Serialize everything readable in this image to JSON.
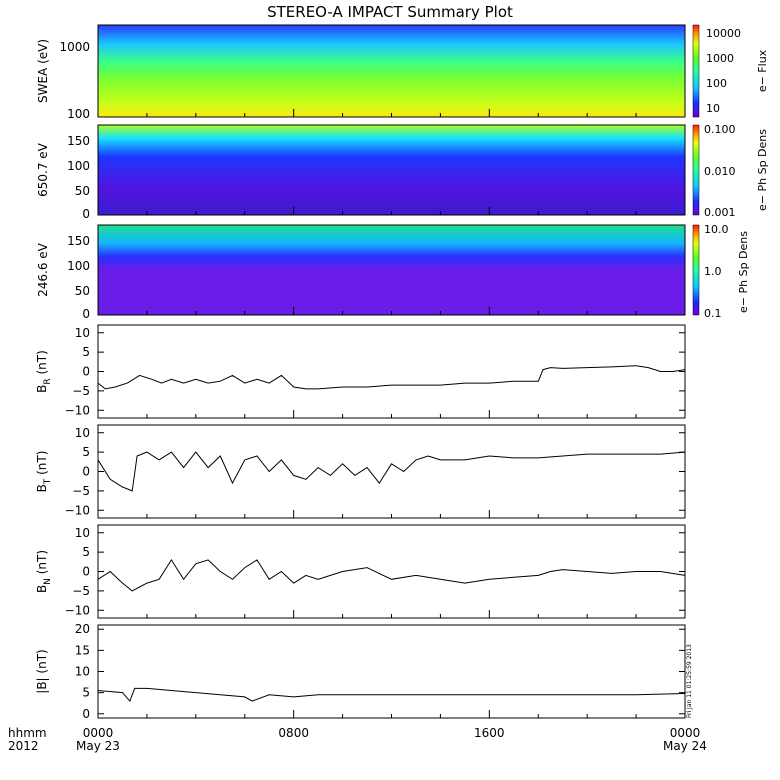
{
  "title": "STEREO-A IMPACT Summary Plot",
  "timestamp": "Fri Jan 11 01:25:59 2013",
  "x_axis": {
    "ticks": [
      "0000",
      "0800",
      "1600",
      "0000"
    ],
    "date_labels": [
      "May 23",
      "",
      "",
      "May 24"
    ],
    "unit_label": "hhmm",
    "year": "2012"
  },
  "colors": {
    "line": "#000000",
    "background": "#ffffff"
  },
  "chart_data": [
    {
      "type": "heatmap",
      "ylabel": "SWEA (eV)",
      "ylog": true,
      "yticks": [
        "1000",
        "100"
      ],
      "colorbar_label": "e− Flux",
      "colorbar_ticks": [
        "10000",
        "1000",
        "100",
        "10"
      ],
      "colormap": "rainbow"
    },
    {
      "type": "heatmap",
      "ylabel": "650.7 eV",
      "yticks": [
        "150",
        "100",
        "50",
        "0"
      ],
      "ylim": [
        0,
        180
      ],
      "colorbar_label": "e− Ph Sp Dens",
      "colorbar_ticks": [
        "0.100",
        "0.010",
        "0.001"
      ],
      "colormap": "rainbow"
    },
    {
      "type": "heatmap",
      "ylabel": "246.6 eV",
      "yticks": [
        "150",
        "100",
        "50",
        "0"
      ],
      "ylim": [
        0,
        180
      ],
      "colorbar_label": "e− Ph Sp Dens",
      "colorbar_ticks": [
        "10.0",
        "1.0",
        "0.1"
      ],
      "colormap": "rainbow"
    },
    {
      "type": "line",
      "ylabel_main": "B",
      "ylabel_sub": "R",
      "ylabel_unit": " (nT)",
      "ylim": [
        -12,
        12
      ],
      "yticks": [
        "10",
        "5",
        "0",
        "−5",
        "−10"
      ],
      "x": [
        0,
        0.3,
        0.7,
        1.2,
        1.7,
        2.2,
        2.6,
        3,
        3.5,
        4,
        4.5,
        5,
        5.5,
        6,
        6.5,
        7,
        7.5,
        8,
        8.5,
        9,
        10,
        11,
        12,
        13,
        14,
        15,
        16,
        17,
        18,
        18.2,
        18.5,
        19,
        20,
        21,
        22,
        22.5,
        23,
        23.5,
        24
      ],
      "values": [
        -3,
        -4.5,
        -4,
        -3,
        -1,
        -2,
        -3,
        -2,
        -3,
        -2,
        -3,
        -2.5,
        -1,
        -3,
        -2,
        -3,
        -1,
        -4,
        -4.5,
        -4.5,
        -4,
        -4,
        -3.5,
        -3.5,
        -3.5,
        -3,
        -3,
        -2.5,
        -2.5,
        0.5,
        1,
        0.8,
        1,
        1.2,
        1.5,
        1,
        0,
        0,
        0.5
      ]
    },
    {
      "type": "line",
      "ylabel_main": "B",
      "ylabel_sub": "T",
      "ylabel_unit": " (nT)",
      "ylim": [
        -12,
        12
      ],
      "yticks": [
        "10",
        "5",
        "0",
        "−5",
        "−10"
      ],
      "x": [
        0,
        0.5,
        1,
        1.4,
        1.6,
        2,
        2.5,
        3,
        3.5,
        4,
        4.5,
        5,
        5.5,
        6,
        6.5,
        7,
        7.5,
        8,
        8.5,
        9,
        9.5,
        10,
        10.5,
        11,
        11.5,
        12,
        12.5,
        13,
        13.5,
        14,
        15,
        16,
        17,
        18,
        19,
        20,
        21,
        22,
        23,
        24
      ],
      "values": [
        3,
        -2,
        -4,
        -5,
        4,
        5,
        3,
        5,
        1,
        5,
        1,
        4,
        -3,
        3,
        4,
        0,
        3,
        -1,
        -2,
        1,
        -1,
        2,
        -1,
        1,
        -3,
        2,
        0,
        3,
        4,
        3,
        3,
        4,
        3.5,
        3.5,
        4,
        4.5,
        4.5,
        4.5,
        4.5,
        5
      ]
    },
    {
      "type": "line",
      "ylabel_main": "B",
      "ylabel_sub": "N",
      "ylabel_unit": " (nT)",
      "ylim": [
        -12,
        12
      ],
      "yticks": [
        "10",
        "5",
        "0",
        "−5",
        "−10"
      ],
      "x": [
        0,
        0.5,
        1,
        1.4,
        1.7,
        2,
        2.5,
        3,
        3.5,
        4,
        4.5,
        5,
        5.5,
        6,
        6.5,
        7,
        7.5,
        8,
        8.5,
        9,
        9.5,
        10,
        11,
        12,
        13,
        14,
        15,
        16,
        17,
        18,
        18.5,
        19,
        20,
        21,
        22,
        23,
        24
      ],
      "values": [
        -2,
        0,
        -3,
        -5,
        -4,
        -3,
        -2,
        3,
        -2,
        2,
        3,
        0,
        -2,
        1,
        3,
        -2,
        0,
        -3,
        -1,
        -2,
        -1,
        0,
        1,
        -2,
        -1,
        -2,
        -3,
        -2,
        -1.5,
        -1,
        0,
        0.5,
        0,
        -0.5,
        0,
        0,
        -1
      ]
    },
    {
      "type": "line",
      "ylabel_main": "|B|",
      "ylabel_sub": "",
      "ylabel_unit": " (nT)",
      "ylim": [
        -1,
        21
      ],
      "yticks": [
        "20",
        "15",
        "10",
        "5",
        "0"
      ],
      "x": [
        0,
        1,
        1.3,
        1.5,
        2,
        3,
        4,
        5,
        6,
        6.3,
        7,
        8,
        9,
        10,
        11,
        12,
        14,
        16,
        18,
        20,
        22,
        24
      ],
      "values": [
        5.5,
        5,
        3,
        6,
        6,
        5.5,
        5,
        4.5,
        4,
        3,
        4.5,
        4,
        4.5,
        4.5,
        4.5,
        4.5,
        4.5,
        4.5,
        4.5,
        4.5,
        4.5,
        4.8
      ]
    }
  ]
}
